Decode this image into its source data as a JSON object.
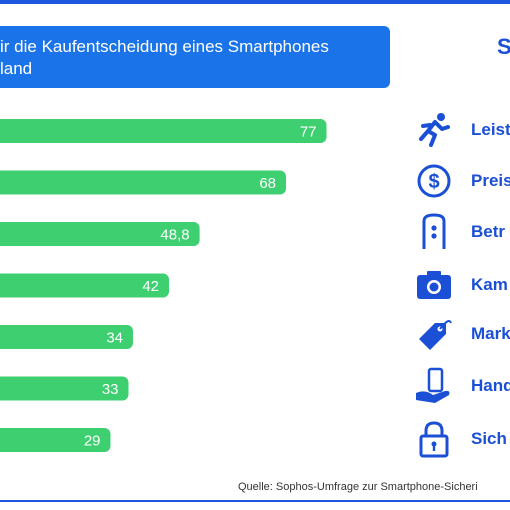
{
  "title": {
    "line1": "ir die Kaufentscheidung eines Smartphones",
    "line2": "land"
  },
  "logo_fragment": "S",
  "source": "Quelle:  Sophos-Umfrage zur Smartphone-Sicheri",
  "colors": {
    "bar": "#3ecf70",
    "accent": "#1a4fd6",
    "title_bg": "#1a73e8"
  },
  "chart_data": {
    "type": "bar",
    "orientation": "horizontal",
    "categories": [
      "Leist",
      "Preis",
      "Betr",
      "Kam",
      "Mark",
      "Hand",
      "Sich"
    ],
    "values": [
      77,
      68,
      48.8,
      42,
      34,
      33,
      29
    ],
    "value_labels": [
      "77",
      "68",
      "48,8",
      "42",
      "34",
      "33",
      "29"
    ],
    "icons": [
      "runner-icon",
      "dollar-icon",
      "device-icon",
      "camera-icon",
      "tag-icon",
      "phone-in-hand-icon",
      "padlock-icon"
    ],
    "grid": false
  }
}
